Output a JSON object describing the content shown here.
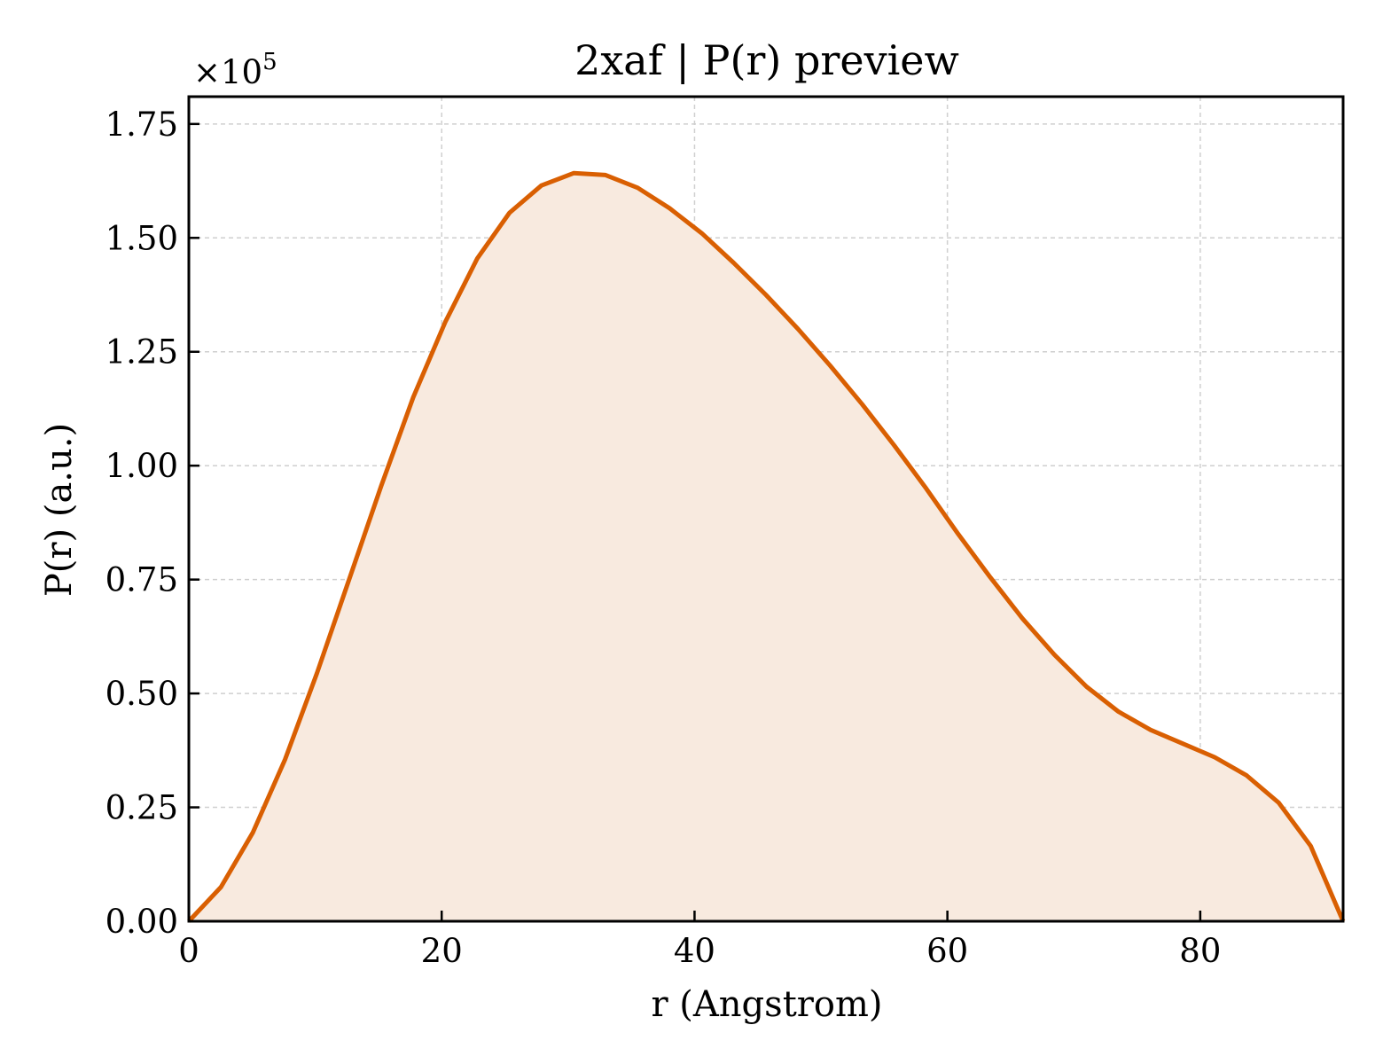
{
  "chart_data": {
    "type": "area",
    "title": "2xaf | P(r) preview",
    "xlabel": "r (Angstrom)",
    "ylabel": "P(r) (a.u.)",
    "y_offset_label": {
      "base": "×10",
      "exponent": "5"
    },
    "xlim": [
      0,
      91.3
    ],
    "ylim": [
      0,
      1.81
    ],
    "xticks": [
      0,
      20,
      40,
      60,
      80
    ],
    "xtick_labels": [
      "0",
      "20",
      "40",
      "60",
      "80"
    ],
    "yticks": [
      0,
      0.25,
      0.5,
      0.75,
      1.0,
      1.25,
      1.5,
      1.75
    ],
    "ytick_labels": [
      "0.00",
      "0.25",
      "0.50",
      "0.75",
      "1.00",
      "1.25",
      "1.50",
      "1.75"
    ],
    "grid": true,
    "line_color": "#d95f02",
    "fill_color": "#f8eadf",
    "x": [
      0,
      2.54,
      5.07,
      7.61,
      10.14,
      12.68,
      15.21,
      17.75,
      20.28,
      22.82,
      25.36,
      27.89,
      30.43,
      32.96,
      35.5,
      38.03,
      40.57,
      43.1,
      45.64,
      48.18,
      50.71,
      53.25,
      55.78,
      58.32,
      60.85,
      63.39,
      65.92,
      68.46,
      71.0,
      73.53,
      76.07,
      78.6,
      81.14,
      83.67,
      86.21,
      88.74,
      91.3
    ],
    "y": [
      0.0,
      0.075,
      0.195,
      0.355,
      0.545,
      0.75,
      0.955,
      1.15,
      1.315,
      1.455,
      1.555,
      1.615,
      1.642,
      1.638,
      1.61,
      1.565,
      1.51,
      1.445,
      1.375,
      1.3,
      1.22,
      1.135,
      1.045,
      0.95,
      0.85,
      0.755,
      0.665,
      0.585,
      0.515,
      0.46,
      0.42,
      0.39,
      0.36,
      0.32,
      0.26,
      0.165,
      0.0
    ],
    "y_units_note": ""
  }
}
